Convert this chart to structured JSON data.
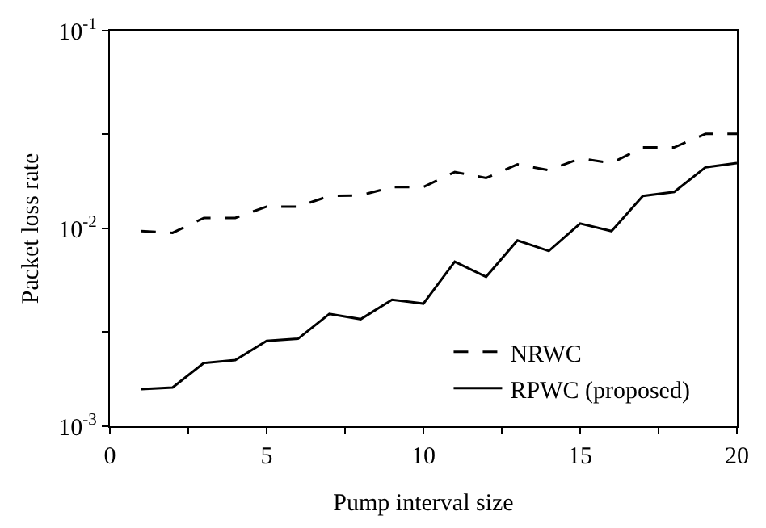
{
  "chart_data": {
    "type": "line",
    "xlabel": "Pump interval size",
    "ylabel": "Packet loss rate",
    "x": [
      1,
      2,
      3,
      4,
      5,
      6,
      7,
      8,
      9,
      10,
      11,
      12,
      13,
      14,
      15,
      16,
      17,
      18,
      19,
      20
    ],
    "series": [
      {
        "name": "NRWC",
        "color": "#000000",
        "line_style": "dashed",
        "values": [
          0.0097,
          0.0095,
          0.0113,
          0.0113,
          0.0129,
          0.0129,
          0.0146,
          0.0147,
          0.0162,
          0.0162,
          0.0193,
          0.018,
          0.0211,
          0.0197,
          0.0226,
          0.0214,
          0.0257,
          0.0257,
          0.0301,
          0.0301
        ]
      },
      {
        "name": "RPWC (proposed)",
        "color": "#000000",
        "line_style": "solid",
        "values": [
          0.00154,
          0.00157,
          0.00209,
          0.00216,
          0.0027,
          0.00277,
          0.0037,
          0.00348,
          0.00436,
          0.00417,
          0.0068,
          0.0057,
          0.0087,
          0.0077,
          0.0106,
          0.0097,
          0.0146,
          0.0153,
          0.0204,
          0.0214
        ]
      }
    ],
    "log": "y",
    "legend": "bottom right",
    "marker": "none",
    "xlim": [
      0,
      20
    ],
    "xticks": [
      0,
      {
        "value": 2.5,
        "label": null
      },
      5,
      {
        "value": 7.5,
        "label": null
      },
      10,
      {
        "value": 12.5,
        "label": null
      },
      15,
      {
        "value": 17.5,
        "label": null
      },
      20
    ],
    "ylim": [
      0.001,
      0.1
    ],
    "yticks": [
      {
        "value": 0.001,
        "label": "10$^{-3}$"
      },
      {
        "value": 0.003,
        "label": null
      },
      {
        "value": 0.01,
        "label": "10$^{-2}$"
      },
      {
        "value": 0.03,
        "label": null
      },
      {
        "value": 0.1,
        "label": "10$^{-1}$"
      }
    ]
  }
}
